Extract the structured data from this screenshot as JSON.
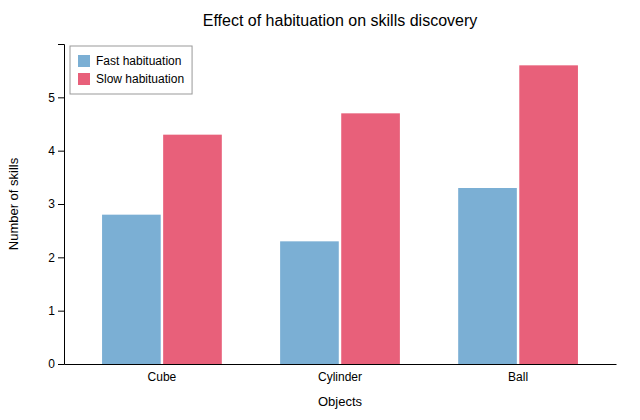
{
  "chart_data": {
    "type": "bar",
    "title": "Effect of habituation on skills discovery",
    "xlabel": "Objects",
    "ylabel": "Number of skills",
    "categories": [
      "Cube",
      "Cylinder",
      "Ball"
    ],
    "series": [
      {
        "name": "Fast habituation",
        "color": "#7BAFD4",
        "values": [
          2.8,
          2.3,
          3.3
        ]
      },
      {
        "name": "Slow habituation",
        "color": "#E8607A",
        "values": [
          4.3,
          4.7,
          5.6
        ]
      }
    ],
    "ylim": [
      0,
      6.0
    ],
    "yticks": [
      0,
      1,
      2,
      3,
      4,
      5
    ],
    "legend": "upper left",
    "grid": false
  }
}
